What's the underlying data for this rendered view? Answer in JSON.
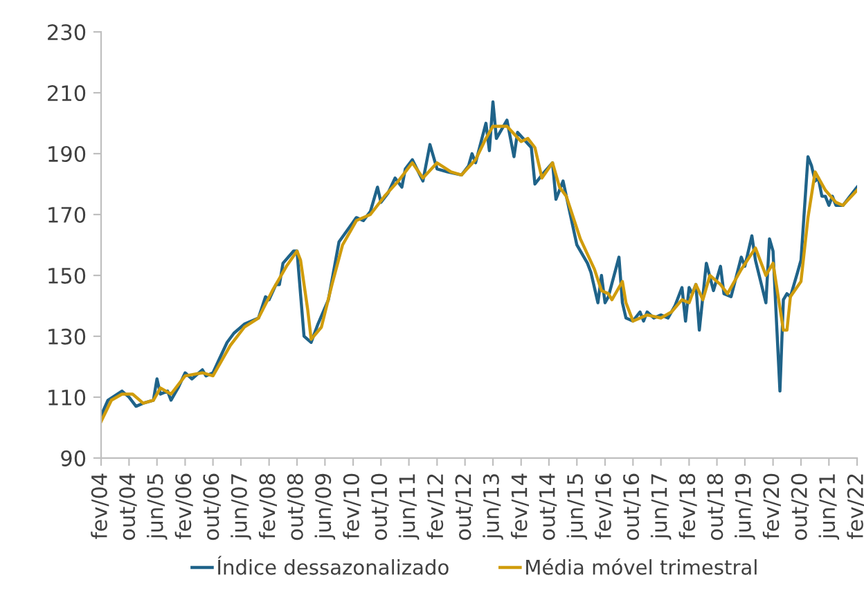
{
  "chart_data": {
    "type": "line",
    "xlim": [
      "2004-02",
      "2022-02"
    ],
    "xticks": [
      {
        "value": "2004-02",
        "label": "fev/04"
      },
      {
        "value": "2004-10",
        "label": "out/04"
      },
      {
        "value": "2005-06",
        "label": "jun/05"
      },
      {
        "value": "2006-02",
        "label": "fev/06"
      },
      {
        "value": "2006-10",
        "label": "out/06"
      },
      {
        "value": "2007-06",
        "label": "jun/07"
      },
      {
        "value": "2008-02",
        "label": "fev/08"
      },
      {
        "value": "2008-10",
        "label": "out/08"
      },
      {
        "value": "2009-06",
        "label": "jun/09"
      },
      {
        "value": "2010-02",
        "label": "fev/10"
      },
      {
        "value": "2010-10",
        "label": "out/10"
      },
      {
        "value": "2011-06",
        "label": "jun/11"
      },
      {
        "value": "2012-02",
        "label": "fev/12"
      },
      {
        "value": "2012-10",
        "label": "out/12"
      },
      {
        "value": "2013-06",
        "label": "jun/13"
      },
      {
        "value": "2014-02",
        "label": "fev/14"
      },
      {
        "value": "2014-10",
        "label": "out/14"
      },
      {
        "value": "2015-06",
        "label": "jun/15"
      },
      {
        "value": "2016-02",
        "label": "fev/16"
      },
      {
        "value": "2016-10",
        "label": "out/16"
      },
      {
        "value": "2017-06",
        "label": "jun/17"
      },
      {
        "value": "2018-02",
        "label": "fev/18"
      },
      {
        "value": "2018-10",
        "label": "out/18"
      },
      {
        "value": "2019-06",
        "label": "jun/19"
      },
      {
        "value": "2020-02",
        "label": "fev/20"
      },
      {
        "value": "2020-10",
        "label": "out/20"
      },
      {
        "value": "2021-06",
        "label": "jun/21"
      },
      {
        "value": "2022-02",
        "label": "fev/22"
      }
    ],
    "ylim": [
      90,
      230
    ],
    "yticks": [
      90,
      110,
      130,
      150,
      170,
      190,
      210,
      230
    ],
    "grid": false,
    "legend": "bottom",
    "marker": "none",
    "line_style": "solid",
    "series": [
      {
        "name": "Índice dessazonalizado",
        "color": "#1f6389",
        "x": [
          "2004-02",
          "2004-04",
          "2004-08",
          "2004-10",
          "2004-12",
          "2005-02",
          "2005-05",
          "2005-06",
          "2005-07",
          "2005-09",
          "2005-10",
          "2005-12",
          "2006-02",
          "2006-04",
          "2006-07",
          "2006-08",
          "2006-10",
          "2006-12",
          "2007-02",
          "2007-04",
          "2007-07",
          "2007-11",
          "2008-01",
          "2008-02",
          "2008-04",
          "2008-05",
          "2008-06",
          "2008-09",
          "2008-10",
          "2008-12",
          "2009-02",
          "2009-04",
          "2009-07",
          "2009-10",
          "2010-03",
          "2010-05",
          "2010-07",
          "2010-09",
          "2010-10",
          "2010-12",
          "2011-02",
          "2011-04",
          "2011-05",
          "2011-07",
          "2011-10",
          "2011-12",
          "2012-02",
          "2012-05",
          "2012-09",
          "2012-11",
          "2012-12",
          "2013-01",
          "2013-04",
          "2013-05",
          "2013-06",
          "2013-07",
          "2013-10",
          "2013-12",
          "2014-01",
          "2014-05",
          "2014-06",
          "2014-08",
          "2014-11",
          "2014-12",
          "2015-02",
          "2015-06",
          "2015-09",
          "2015-10",
          "2015-12",
          "2016-01",
          "2016-02",
          "2016-03",
          "2016-06",
          "2016-07",
          "2016-08",
          "2016-10",
          "2016-12",
          "2017-01",
          "2017-02",
          "2017-04",
          "2017-06",
          "2017-08",
          "2017-10",
          "2017-12",
          "2018-01",
          "2018-02",
          "2018-03",
          "2018-04",
          "2018-05",
          "2018-07",
          "2018-09",
          "2018-11",
          "2018-12",
          "2019-02",
          "2019-05",
          "2019-06",
          "2019-08",
          "2019-09",
          "2019-12",
          "2020-01",
          "2020-02",
          "2020-04",
          "2020-05",
          "2020-06",
          "2020-07",
          "2020-09",
          "2020-10",
          "2020-12",
          "2021-01",
          "2021-02",
          "2021-03",
          "2021-04",
          "2021-05",
          "2021-06",
          "2021-07",
          "2021-08",
          "2021-10",
          "2021-12",
          "2022-02"
        ],
        "values": [
          104,
          109,
          112,
          110,
          107,
          108,
          109,
          116,
          111,
          112,
          109,
          113,
          118,
          116,
          119,
          117,
          118,
          123,
          128,
          131,
          134,
          136,
          143,
          142,
          147,
          147,
          154,
          158,
          158,
          130,
          128,
          134,
          142,
          161,
          169,
          168,
          171,
          179,
          174,
          177,
          182,
          179,
          185,
          188,
          181,
          193,
          185,
          184,
          183,
          186,
          190,
          187,
          200,
          191,
          207,
          195,
          201,
          189,
          197,
          192,
          180,
          183,
          187,
          175,
          181,
          160,
          154,
          151,
          141,
          150,
          141,
          143,
          156,
          141,
          136,
          135,
          138,
          135,
          138,
          136,
          137,
          136,
          140,
          146,
          135,
          146,
          144,
          147,
          132,
          154,
          145,
          153,
          144,
          143,
          156,
          153,
          163,
          155,
          141,
          162,
          158,
          112,
          142,
          144,
          143,
          151,
          155,
          189,
          186,
          181,
          182,
          176,
          176,
          173,
          176,
          173,
          173,
          176,
          179
        ]
      },
      {
        "name": "Média móvel trimestral",
        "color": "#d09c0c",
        "x": [
          "2004-02",
          "2004-05",
          "2004-08",
          "2004-11",
          "2005-02",
          "2005-05",
          "2005-07",
          "2005-10",
          "2006-02",
          "2006-07",
          "2006-10",
          "2007-03",
          "2007-07",
          "2007-11",
          "2008-03",
          "2008-07",
          "2008-10",
          "2008-11",
          "2009-01",
          "2009-02",
          "2009-05",
          "2009-08",
          "2009-11",
          "2010-03",
          "2010-07",
          "2010-11",
          "2011-03",
          "2011-07",
          "2011-10",
          "2012-02",
          "2012-06",
          "2012-09",
          "2013-01",
          "2013-04",
          "2013-06",
          "2013-08",
          "2013-10",
          "2014-02",
          "2014-04",
          "2014-06",
          "2014-08",
          "2014-11",
          "2015-01",
          "2015-03",
          "2015-07",
          "2015-11",
          "2016-01",
          "2016-03",
          "2016-04",
          "2016-07",
          "2016-08",
          "2016-10",
          "2017-02",
          "2017-06",
          "2017-09",
          "2017-12",
          "2018-02",
          "2018-04",
          "2018-06",
          "2018-08",
          "2018-11",
          "2019-01",
          "2019-05",
          "2019-09",
          "2019-12",
          "2020-02",
          "2020-05",
          "2020-06",
          "2020-07",
          "2020-10",
          "2020-12",
          "2021-02",
          "2021-05",
          "2021-08",
          "2021-10",
          "2022-02"
        ],
        "values": [
          102,
          109,
          111,
          111,
          108,
          109,
          113,
          111,
          117,
          118,
          117,
          127,
          133,
          136,
          145,
          153,
          158,
          155,
          139,
          129,
          133,
          147,
          160,
          168,
          170,
          176,
          181,
          187,
          182,
          187,
          184,
          183,
          188,
          195,
          199,
          199,
          199,
          194,
          195,
          192,
          182,
          187,
          179,
          176,
          162,
          152,
          145,
          144,
          142,
          148,
          141,
          135,
          137,
          136,
          138,
          142,
          141,
          147,
          142,
          150,
          147,
          144,
          152,
          159,
          150,
          154,
          132,
          132,
          143,
          148,
          169,
          184,
          178,
          174,
          173,
          178
        ]
      }
    ]
  }
}
